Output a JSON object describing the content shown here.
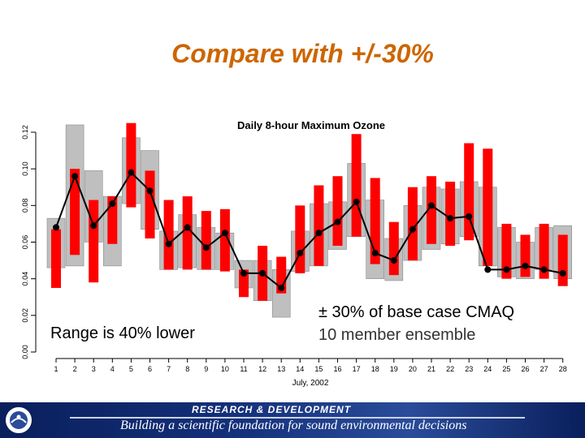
{
  "slide": {
    "title": "Compare with +/-30%",
    "annotation_left": "Range is 40% lower",
    "annotation_right_line1": "± 30% of base case CMAQ",
    "annotation_right_line2": "10 member ensemble"
  },
  "footer": {
    "org": "RESEARCH & DEVELOPMENT",
    "tagline": "Building a scientific foundation for sound environmental decisions",
    "logo_icon": "epa-seal-icon"
  },
  "colors": {
    "title": "#cc6600",
    "ensemble_range": "#bfbfbf",
    "pm30_range": "#ff0000",
    "base_case": "#000000",
    "footer_bg": "#0a1f5c"
  },
  "chart_data": {
    "type": "range-bar-line",
    "title": "Daily 8-hour Maximum Ozone",
    "xlabel": "July, 2002",
    "ylabel": "",
    "ylim": [
      0.0,
      0.12
    ],
    "yticks": [
      "0.00",
      "0.02",
      "0.04",
      "0.06",
      "0.08",
      "0.10",
      "0.12"
    ],
    "categories": [
      "1",
      "2",
      "3",
      "4",
      "5",
      "6",
      "7",
      "8",
      "9",
      "10",
      "11",
      "12",
      "13",
      "14",
      "15",
      "16",
      "17",
      "18",
      "19",
      "20",
      "21",
      "22",
      "23",
      "24",
      "25",
      "26",
      "27",
      "28"
    ],
    "series": [
      {
        "name": "",
        "kind": "range",
        "low": [
          0.046,
          0.047,
          0.06,
          0.047,
          0.081,
          0.067,
          0.045,
          0.046,
          0.045,
          0.045,
          0.035,
          0.028,
          0.019,
          0.044,
          0.047,
          0.056,
          0.063,
          0.04,
          0.039,
          0.05,
          0.056,
          0.059,
          0.063,
          0.047,
          0.041,
          0.04,
          0.045,
          0.04
        ],
        "high": [
          0.073,
          0.124,
          0.099,
          0.085,
          0.117,
          0.11,
          0.066,
          0.075,
          0.068,
          0.065,
          0.05,
          0.05,
          0.045,
          0.066,
          0.081,
          0.082,
          0.103,
          0.083,
          0.062,
          0.08,
          0.09,
          0.089,
          0.093,
          0.09,
          0.068,
          0.06,
          0.068,
          0.069
        ]
      },
      {
        "name": "",
        "kind": "range",
        "low": [
          0.035,
          0.053,
          0.038,
          0.059,
          0.079,
          0.062,
          0.045,
          0.045,
          0.045,
          0.044,
          0.03,
          0.028,
          0.032,
          0.043,
          0.047,
          0.058,
          0.063,
          0.048,
          0.042,
          0.05,
          0.059,
          0.058,
          0.061,
          0.047,
          0.04,
          0.041,
          0.04,
          0.036
        ],
        "high": [
          0.067,
          0.1,
          0.083,
          0.085,
          0.125,
          0.099,
          0.083,
          0.085,
          0.077,
          0.078,
          0.045,
          0.058,
          0.052,
          0.08,
          0.091,
          0.096,
          0.119,
          0.095,
          0.071,
          0.09,
          0.096,
          0.093,
          0.114,
          0.111,
          0.07,
          0.064,
          0.07,
          0.064
        ]
      },
      {
        "name": "",
        "kind": "line",
        "values": [
          0.068,
          0.096,
          0.069,
          0.081,
          0.098,
          0.088,
          0.059,
          0.068,
          0.057,
          0.065,
          0.043,
          0.043,
          0.035,
          0.054,
          0.065,
          0.071,
          0.082,
          0.054,
          0.05,
          0.067,
          0.08,
          0.073,
          0.074,
          0.045,
          0.045,
          0.047,
          0.045,
          0.043
        ]
      }
    ],
    "grid": false,
    "legend": "none"
  }
}
